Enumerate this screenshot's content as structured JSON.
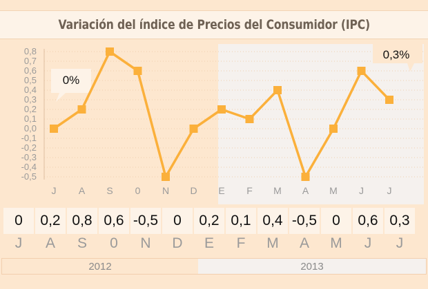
{
  "title": "Variación del índice de Precios del Consumidor (IPC)",
  "chart_data": {
    "type": "line",
    "title": "Variación del índice de Precios del Consumidor (IPC)",
    "categories": [
      "J",
      "A",
      "S",
      "0",
      "N",
      "D",
      "E",
      "F",
      "M",
      "A",
      "M",
      "J",
      "J"
    ],
    "series": [
      {
        "values": [
          0,
          0.2,
          0.8,
          0.6,
          -0.5,
          0,
          0.2,
          0.1,
          0.4,
          -0.5,
          0,
          0.6,
          0.3
        ]
      }
    ],
    "ylim": [
      -0.5,
      0.8
    ],
    "yticks": [
      "0,8",
      "0,7",
      "0,6",
      "0,5",
      "0,4",
      "0,3",
      "0,2",
      "0,1",
      "0,0",
      "-0,1",
      "-0,2",
      "-0,3",
      "-0,4",
      "-0,5"
    ],
    "grid": true,
    "annotations": [
      {
        "label": "0%",
        "index": 0
      },
      {
        "label": "0,3%",
        "index": 12
      }
    ],
    "line_color": "#fbb03b"
  },
  "table": {
    "values": [
      "0",
      "0,2",
      "0,8",
      "0,6",
      "-0,5",
      "0",
      "0,2",
      "0,1",
      "0,4",
      "-0,5",
      "0",
      "0,6",
      "0,3"
    ],
    "months": [
      "J",
      "A",
      "S",
      "0",
      "N",
      "D",
      "E",
      "F",
      "M",
      "A",
      "M",
      "J",
      "J"
    ]
  },
  "years": {
    "y2012": "2012",
    "y2013": "2013"
  }
}
